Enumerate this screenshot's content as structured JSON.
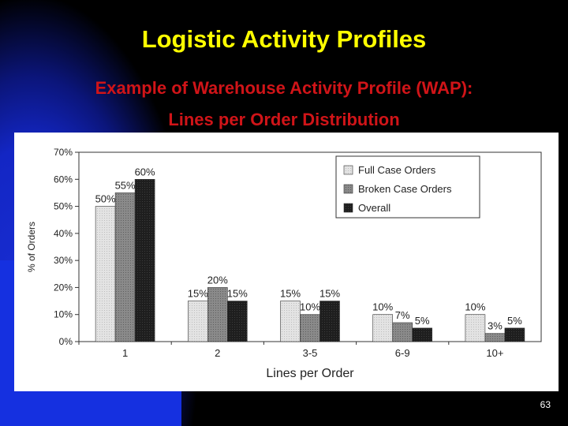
{
  "slide": {
    "title": "Logistic Activity Profiles",
    "subtitle_line1": "Example of Warehouse Activity Profile (WAP):",
    "subtitle_line2": "Lines per Order Distribution",
    "page_number": "63"
  },
  "colors": {
    "title": "#ffff00",
    "subtitle": "#d01418",
    "background_blue": "#1530e0",
    "full_case": "#e3e3e3",
    "broken_case": "#8a8a8a",
    "overall": "#1e1e1e"
  },
  "chart_data": {
    "type": "bar",
    "xlabel": "Lines per Order",
    "ylabel": "% of Orders",
    "ylim": [
      0,
      70
    ],
    "yticks": [
      "0%",
      "10%",
      "20%",
      "30%",
      "40%",
      "50%",
      "60%",
      "70%"
    ],
    "categories": [
      "1",
      "2",
      "3-5",
      "6-9",
      "10+"
    ],
    "legend_position": "top-right",
    "grid": false,
    "series": [
      {
        "name": "Full Case Orders",
        "values": [
          50,
          15,
          15,
          10,
          10
        ],
        "labels": [
          "50%",
          "15%",
          "15%",
          "10%",
          "10%"
        ]
      },
      {
        "name": "Broken Case Orders",
        "values": [
          55,
          20,
          10,
          7,
          3
        ],
        "labels": [
          "55%",
          "20%",
          "10%",
          "7%",
          "3%"
        ]
      },
      {
        "name": "Overall",
        "values": [
          60,
          15,
          15,
          5,
          5
        ],
        "labels": [
          "60%",
          "15%",
          "15%",
          "5%",
          "5%"
        ]
      }
    ]
  }
}
